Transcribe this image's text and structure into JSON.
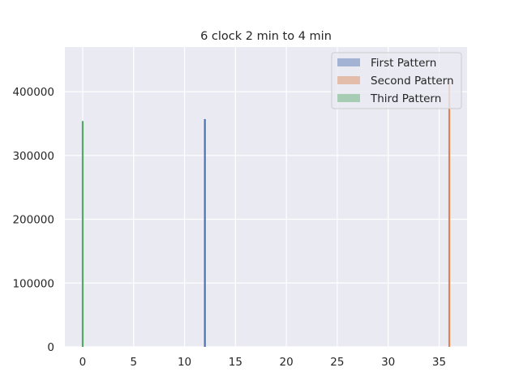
{
  "chart_data": {
    "type": "bar",
    "title": "6 clock 2 min to 4 min",
    "xlabel": "",
    "ylabel": "",
    "xlim": [
      -1.75,
      37.75
    ],
    "ylim": [
      0,
      470000
    ],
    "xticks": [
      0,
      5,
      10,
      15,
      20,
      25,
      30,
      35
    ],
    "yticks": [
      0,
      100000,
      200000,
      300000,
      400000
    ],
    "grid": true,
    "legend_position": "top-right",
    "series": [
      {
        "name": "First Pattern",
        "color": "#4c72b0",
        "x": 12,
        "value": 357000
      },
      {
        "name": "Second Pattern",
        "color": "#dd8452",
        "x": 36,
        "value": 415000
      },
      {
        "name": "Third Pattern",
        "color": "#55a868",
        "x": 0,
        "value": 354000
      }
    ]
  }
}
